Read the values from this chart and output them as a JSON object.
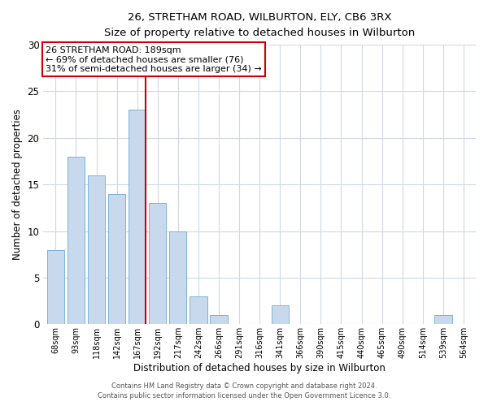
{
  "title": "26, STRETHAM ROAD, WILBURTON, ELY, CB6 3RX",
  "subtitle": "Size of property relative to detached houses in Wilburton",
  "xlabel": "Distribution of detached houses by size in Wilburton",
  "ylabel": "Number of detached properties",
  "bar_labels": [
    "68sqm",
    "93sqm",
    "118sqm",
    "142sqm",
    "167sqm",
    "192sqm",
    "217sqm",
    "242sqm",
    "266sqm",
    "291sqm",
    "316sqm",
    "341sqm",
    "366sqm",
    "390sqm",
    "415sqm",
    "440sqm",
    "465sqm",
    "490sqm",
    "514sqm",
    "539sqm",
    "564sqm"
  ],
  "bar_values": [
    8,
    18,
    16,
    14,
    23,
    13,
    10,
    3,
    1,
    0,
    0,
    2,
    0,
    0,
    0,
    0,
    0,
    0,
    0,
    1,
    0
  ],
  "bar_color": "#c8d9ed",
  "bar_edge_color": "#7ab5d8",
  "vline_color": "#cc0000",
  "annotation_line1": "26 STRETHAM ROAD: 189sqm",
  "annotation_line2": "← 69% of detached houses are smaller (76)",
  "annotation_line3": "31% of semi-detached houses are larger (34) →",
  "annotation_box_color": "#cc0000",
  "ylim": [
    0,
    30
  ],
  "yticks": [
    0,
    5,
    10,
    15,
    20,
    25,
    30
  ],
  "footer1": "Contains HM Land Registry data © Crown copyright and database right 2024.",
  "footer2": "Contains public sector information licensed under the Open Government Licence 3.0.",
  "bg_color": "#ffffff",
  "grid_color": "#d0d8e8"
}
